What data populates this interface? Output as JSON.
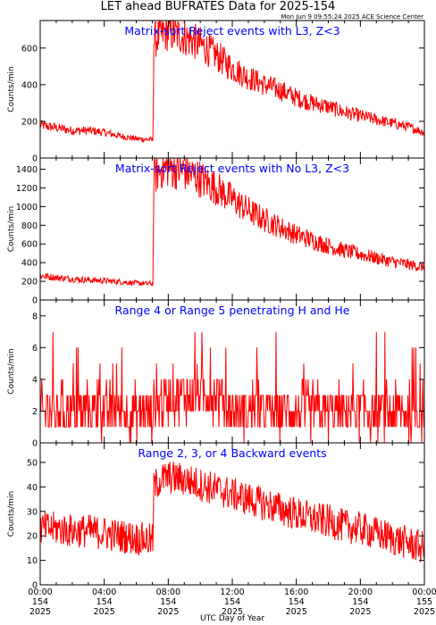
{
  "figure": {
    "title": "LET ahead BUFRATES Data for 2025-154",
    "stamp": "Mon Jun  9 09:55:24 2025 ACE Science Center",
    "xlabel": "UTC Day of Year",
    "series_color": "#ff0000",
    "panel_title_color": "#0000ff"
  },
  "chart_data": [
    {
      "type": "line",
      "title": "Matrix-sort Reject events with L3, Z<3",
      "ylabel": "Counts/min",
      "xlim": [
        0,
        24
      ],
      "ylim": [
        0,
        750
      ],
      "yticks": [
        0,
        200,
        400,
        600
      ],
      "grid": false,
      "x": [
        0,
        1,
        2,
        3,
        4,
        5,
        6,
        7.05,
        7.1,
        7.5,
        8,
        9,
        10,
        11,
        12,
        13,
        14,
        15,
        16,
        17,
        18,
        19,
        20,
        21,
        22,
        23,
        24
      ],
      "series": [
        {
          "values": [
            180,
            165,
            150,
            150,
            140,
            120,
            105,
            100,
            640,
            670,
            690,
            660,
            620,
            560,
            490,
            440,
            400,
            370,
            330,
            300,
            280,
            250,
            230,
            210,
            190,
            170,
            140
          ]
        }
      ]
    },
    {
      "type": "line",
      "title": "Matrix-sort Reject events with No L3, Z<3",
      "ylabel": "Counts/min",
      "xlim": [
        0,
        24
      ],
      "ylim": [
        0,
        1520
      ],
      "yticks": [
        0,
        200,
        400,
        600,
        800,
        1000,
        1200,
        1400
      ],
      "grid": false,
      "x": [
        0,
        1,
        2,
        3,
        4,
        5,
        6,
        7.05,
        7.1,
        7.5,
        8,
        9,
        10,
        11,
        12,
        13,
        14,
        15,
        16,
        17,
        18,
        19,
        20,
        21,
        22,
        23,
        24
      ],
      "series": [
        {
          "values": [
            260,
            240,
            225,
            215,
            205,
            195,
            180,
            175,
            1320,
            1400,
            1420,
            1380,
            1300,
            1200,
            1080,
            960,
            860,
            780,
            700,
            640,
            580,
            530,
            490,
            450,
            410,
            380,
            350
          ]
        }
      ]
    },
    {
      "type": "line",
      "title": "Range 4 or Range 5 penetrating H and He",
      "ylabel": "Counts/min",
      "xlim": [
        0,
        24
      ],
      "ylim": [
        0,
        9
      ],
      "yticks": [
        0,
        2,
        4,
        6,
        8
      ],
      "grid": false,
      "x": [
        0,
        1,
        2,
        3,
        4,
        5,
        6,
        7,
        8,
        9,
        10,
        11,
        12,
        13,
        14,
        15,
        16,
        17,
        18,
        19,
        20,
        21,
        22,
        23,
        24
      ],
      "series": [
        {
          "values": [
            2,
            2,
            2,
            2,
            2,
            2,
            2,
            2,
            3,
            3,
            3,
            3,
            2,
            2,
            2,
            2,
            2,
            2,
            2,
            2,
            2,
            2,
            2,
            2,
            2
          ]
        }
      ]
    },
    {
      "type": "line",
      "title": "Range 2, 3, or 4 Backward events",
      "ylabel": "Counts/min",
      "xlim": [
        0,
        24
      ],
      "ylim": [
        0,
        58
      ],
      "yticks": [
        0,
        10,
        20,
        30,
        40,
        50
      ],
      "grid": false,
      "x": [
        0,
        1,
        2,
        3,
        4,
        5,
        6,
        7.05,
        7.1,
        7.5,
        8,
        9,
        10,
        11,
        12,
        13,
        14,
        15,
        16,
        17,
        18,
        19,
        20,
        21,
        22,
        23,
        24
      ],
      "series": [
        {
          "values": [
            23,
            23,
            22,
            22,
            21,
            20,
            19,
            18,
            40,
            43,
            44,
            43,
            41,
            39,
            37,
            35,
            33,
            31,
            29,
            27,
            26,
            24,
            23,
            21,
            19,
            17,
            15
          ]
        }
      ],
      "xticks": [
        {
          "x": 0,
          "time": "00:00",
          "doy": "154",
          "year": "2025"
        },
        {
          "x": 4,
          "time": "04:00",
          "doy": "154",
          "year": "2025"
        },
        {
          "x": 8,
          "time": "08:00",
          "doy": "154",
          "year": "2025"
        },
        {
          "x": 12,
          "time": "12:00",
          "doy": "154",
          "year": "2025"
        },
        {
          "x": 16,
          "time": "16:00",
          "doy": "154",
          "year": "2025"
        },
        {
          "x": 20,
          "time": "20:00",
          "doy": "154",
          "year": "2025"
        },
        {
          "x": 24,
          "time": "00:00",
          "doy": "155",
          "year": "2025"
        }
      ]
    }
  ]
}
